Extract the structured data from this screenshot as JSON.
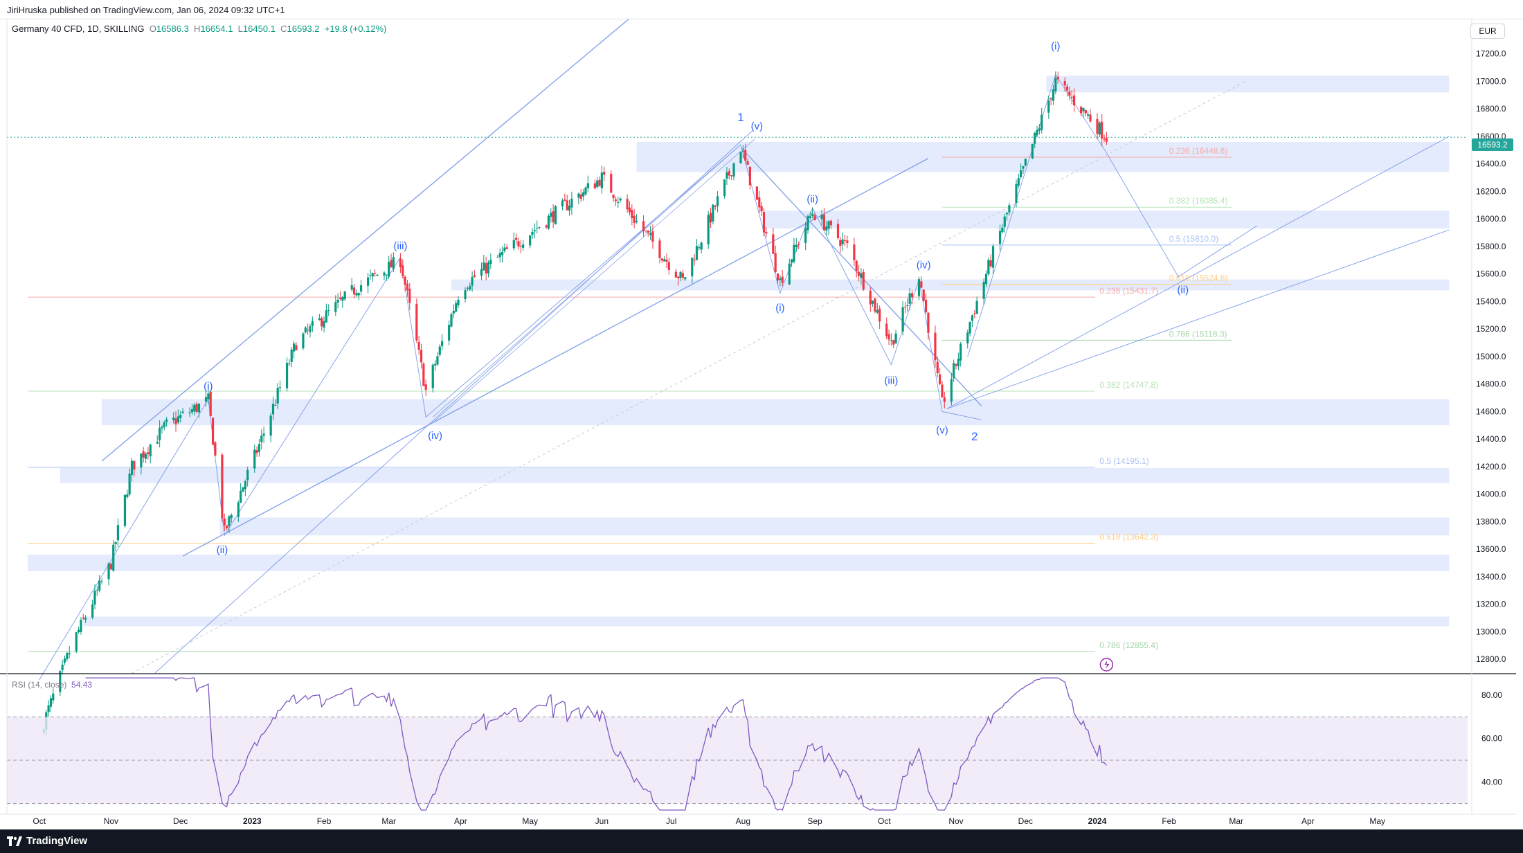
{
  "publish_info": {
    "author": "JiriHruska",
    "text": "published on TradingView.com, Jan 06, 2024 09:32 UTC+1"
  },
  "legend": {
    "symbol": "Germany 40 CFD, 1D, SKILLING",
    "o_label": "O",
    "o": "16586.3",
    "h_label": "H",
    "h": "16654.1",
    "l_label": "L",
    "l": "16450.1",
    "c_label": "C",
    "c": "16593.2",
    "change": "+19.8 (+0.12%)"
  },
  "currency": "EUR",
  "last_price": "16593.2",
  "rsi": {
    "label": "RSI (14, close)",
    "value": "54.43"
  },
  "footer": {
    "brand": "TradingView"
  },
  "colors": {
    "up": "#089981",
    "down": "#f23645",
    "zone": "#dfe8fb",
    "line": "#7c9ae8",
    "label": "#2962ff",
    "rsi": "#7e57c2",
    "rsi_band": "#ede7f6"
  },
  "chart_data": [
    {
      "type": "candlestick",
      "title": "Germany 40 CFD, 1D, SKILLING",
      "x_axis_labels": [
        "Oct",
        "Nov",
        "Dec",
        "2023",
        "Feb",
        "Mar",
        "Apr",
        "May",
        "Jun",
        "Jul",
        "Aug",
        "Sep",
        "Oct",
        "Nov",
        "Dec",
        "2024",
        "Feb",
        "Mar",
        "Apr",
        "May"
      ],
      "y_axis_labels": [
        "17200.0",
        "17000.0",
        "16800.0",
        "16600.0",
        "16400.0",
        "16200.0",
        "16000.0",
        "15800.0",
        "15600.0",
        "15400.0",
        "15200.0",
        "15000.0",
        "14800.0",
        "14600.0",
        "14400.0",
        "14200.0",
        "14000.0",
        "13800.0",
        "13600.0",
        "13400.0",
        "13200.0",
        "13000.0",
        "12800.0"
      ],
      "ylim": [
        12700,
        17450
      ],
      "price_path": [
        {
          "date": "2022-10-01",
          "close": 12250
        },
        {
          "date": "2022-10-15",
          "close": 12900
        },
        {
          "date": "2022-11-01",
          "close": 13500
        },
        {
          "date": "2022-11-10",
          "close": 14200
        },
        {
          "date": "2022-11-25",
          "close": 14500
        },
        {
          "date": "2022-12-13",
          "close": 14680
        },
        {
          "date": "2022-12-20",
          "close": 13720
        },
        {
          "date": "2023-01-05",
          "close": 14400
        },
        {
          "date": "2023-01-20",
          "close": 15100
        },
        {
          "date": "2023-02-15",
          "close": 15500
        },
        {
          "date": "2023-03-06",
          "close": 15700
        },
        {
          "date": "2023-03-17",
          "close": 14750
        },
        {
          "date": "2023-04-01",
          "close": 15500
        },
        {
          "date": "2023-05-01",
          "close": 15900
        },
        {
          "date": "2023-06-01",
          "close": 16300
        },
        {
          "date": "2023-07-06",
          "close": 15550
        },
        {
          "date": "2023-07-31",
          "close": 16520
        },
        {
          "date": "2023-08-17",
          "close": 15550
        },
        {
          "date": "2023-08-31",
          "close": 16050
        },
        {
          "date": "2023-09-15",
          "close": 15800
        },
        {
          "date": "2023-10-04",
          "close": 15100
        },
        {
          "date": "2023-10-16",
          "close": 15600
        },
        {
          "date": "2023-10-26",
          "close": 14650
        },
        {
          "date": "2023-11-06",
          "close": 15200
        },
        {
          "date": "2023-11-20",
          "close": 15900
        },
        {
          "date": "2023-12-01",
          "close": 16400
        },
        {
          "date": "2023-12-14",
          "close": 17000
        },
        {
          "date": "2023-12-28",
          "close": 16750
        },
        {
          "date": "2024-01-05",
          "close": 16593.2
        }
      ],
      "fib_levels": [
        {
          "label": "0.236 (16448.6)",
          "value": 16448.6,
          "color": "#f7a9a8"
        },
        {
          "label": "0.382 (16085.4)",
          "value": 16085.4,
          "color": "#b9e3b5"
        },
        {
          "label": "0.5 (15810.0)",
          "value": 15810.0,
          "color": "#a9c2f7"
        },
        {
          "label": "0.618 (15524.6)",
          "value": 15524.6,
          "color": "#ffcc80"
        },
        {
          "label": "0.786 (15118.3)",
          "value": 15118.3,
          "color": "#a5d6a7"
        },
        {
          "label": "0.236 (15431.7)",
          "value": 15431.7,
          "color": "#f7a9a8"
        },
        {
          "label": "0.382 (14747.8)",
          "value": 14747.8,
          "color": "#b9e3b5"
        },
        {
          "label": "0.5 (14195.1)",
          "value": 14195.1,
          "color": "#a9c2f7"
        },
        {
          "label": "0.618 (13642.3)",
          "value": 13642.3,
          "color": "#ffcc80"
        },
        {
          "label": "0.786 (12855.4)",
          "value": 12855.4,
          "color": "#a5d6a7"
        }
      ],
      "wave_labels": [
        "(i)",
        "(ii)",
        "(iii)",
        "(iv)",
        "(v)",
        "1",
        "(i)",
        "(ii)",
        "(iii)",
        "(iv)",
        "(v)",
        "2",
        "(i)",
        "(ii)"
      ]
    },
    {
      "type": "line",
      "title": "RSI (14, close)",
      "y_axis_labels": [
        "80.00",
        "60.00",
        "40.00"
      ],
      "ylim": [
        27,
        89
      ],
      "bands": [
        30,
        50,
        70
      ],
      "last": 54.43
    }
  ]
}
